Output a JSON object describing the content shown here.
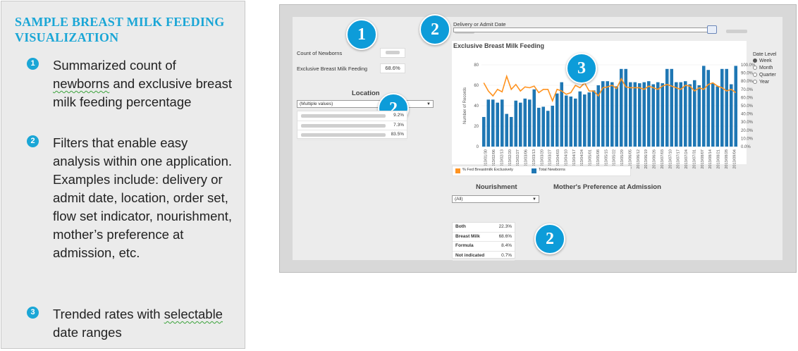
{
  "panel": {
    "title": "SAMPLE BREAST MILK FEEDING VISUALIZATION",
    "bullets": [
      {
        "num": "1",
        "text_pre": "Summarized count of ",
        "text_ul": "newborns",
        "text_post": " and exclusive breast milk feeding percentage"
      },
      {
        "num": "2",
        "text_pre": "Filters that enable easy analysis within one application. Examples include: delivery or admit date, location, order set, flow set indicator, nourishment, mother’s preference at admission, etc.",
        "text_ul": "",
        "text_post": ""
      },
      {
        "num": "3",
        "text_pre": "Trended rates with ",
        "text_ul": "selectable",
        "text_post": " date ranges"
      }
    ],
    "accent": "#1aa6d6"
  },
  "dashboard": {
    "badges": {
      "one": "1",
      "two": "2",
      "three": "3"
    },
    "date_filter_label": "Delivery or Admit Date",
    "count_label": "Count of Newborns",
    "ebmf_label": "Exclusive Breast Milk Feeding",
    "ebmf_value": "68.6%",
    "location": {
      "header": "Location",
      "dropdown": "(Multiple values)",
      "values": [
        "9.2%",
        "7.3%",
        "83.5%"
      ]
    },
    "nourishment": {
      "header": "Nourishment",
      "dropdown": "(All)"
    },
    "mother_pref": {
      "header": "Mother's Preference at Admission"
    },
    "pref_table": [
      {
        "label": "Both",
        "value": "22.3%"
      },
      {
        "label": "Breast Milk",
        "value": "68.6%"
      },
      {
        "label": "Formula",
        "value": "8.4%"
      },
      {
        "label": "Not indicated",
        "value": "0.7%"
      }
    ],
    "date_level": {
      "title": "Date Level",
      "options": [
        "Week",
        "Month",
        "Quarter",
        "Year"
      ],
      "selected": "Week"
    },
    "colors": {
      "bar": "#1f77b4",
      "line": "#ff9320"
    }
  },
  "chart_data": {
    "type": "bar",
    "title": "Exclusive Breast Milk Feeding",
    "ylabel": "Number of Records",
    "ylim": [
      0,
      80
    ],
    "y2lim": [
      0,
      100
    ],
    "y_ticks": [
      "80",
      "60",
      "40",
      "20",
      "0"
    ],
    "y2_ticks": [
      "100.0%",
      "90.0%",
      "80.0%",
      "70.0%",
      "60.0%",
      "50.0%",
      "40.0%",
      "30.0%",
      "20.0%",
      "10.0%",
      "0.0%"
    ],
    "categories": [
      "2013/01/30",
      "2013/02/06",
      "2013/02/13",
      "2013/02/20",
      "2013/02/27",
      "2013/03/06",
      "2013/03/13",
      "2013/03/20",
      "2013/03/27",
      "2013/04/03",
      "2013/04/10",
      "2013/04/17",
      "2013/04/24",
      "2013/05/01",
      "2013/05/08",
      "2013/05/15",
      "2013/05/22",
      "2013/05/29",
      "2013/06/05",
      "2013/06/12",
      "2013/06/19",
      "2013/06/26",
      "2013/07/03",
      "2013/07/10",
      "2013/07/17",
      "2013/07/24",
      "2013/07/31",
      "2013/08/07",
      "2013/08/14",
      "2013/08/21",
      "2013/08/28",
      "2013/09/04",
      "2013/09/11",
      "2013/09/18",
      "2013/09/25",
      "2013/10/02",
      "2013/10/09",
      "2013/10/16",
      "2013/10/23",
      "2013/10/30",
      "2013/11/06",
      "2013/11/13",
      "2013/11/20",
      "2013/11/27",
      "2013/12/04",
      "2013/12/11",
      "2013/12/18",
      "2013/12/25",
      "2014/01/01",
      "2014/01/08",
      "2014/01/15",
      "2014/01/22",
      "2014/01/29",
      "2014/02/05",
      "2014/02/12",
      "2014/02/19"
    ],
    "x_tick_labels": [
      "2013/01/30",
      "2013/02/06",
      "2013/02/13",
      "2013/02/20",
      "2013/02/27",
      "2013/03/06",
      "2013/03/13",
      "2013/03/20",
      "2013/03/27",
      "2013/04/03",
      "2013/04/10",
      "2013/04/17",
      "2013/04/24",
      "2013/05/01",
      "2013/05/08",
      "2013/05/15",
      "2013/05/22",
      "2013/05/29",
      "2013/06/05",
      "2013/06/12",
      "2013/06/19",
      "2013/06/26",
      "2013/07/03",
      "2013/07/10",
      "2013/07/17",
      "2013/07/24",
      "2013/07/31",
      "2013/08/07",
      "2013/08/14",
      "2013/08/21",
      "2013/08/28",
      "2013/09/04"
    ],
    "series": [
      {
        "name": "Total Newborns",
        "type": "bar",
        "axis": "left",
        "values": [
          29,
          46,
          46,
          43,
          46,
          32,
          29,
          45,
          43,
          47,
          46,
          56,
          38,
          39,
          35,
          40,
          52,
          63,
          50,
          49,
          47,
          54,
          51,
          53,
          55,
          60,
          64,
          64,
          63,
          59,
          76,
          76,
          63,
          63,
          62,
          63,
          64,
          61,
          63,
          62,
          76,
          76,
          63,
          63,
          64,
          61,
          65,
          60,
          79,
          75,
          62,
          59,
          76,
          76,
          61,
          79
        ]
      },
      {
        "name": "% Fed Breastmilk Exclusively",
        "type": "line",
        "axis": "right",
        "values": [
          78,
          68,
          62,
          70,
          67,
          86,
          70,
          76,
          68,
          73,
          72,
          74,
          66,
          70,
          70,
          56,
          70,
          68,
          64,
          66,
          75,
          72,
          78,
          68,
          68,
          62,
          72,
          73,
          75,
          71,
          83,
          73,
          72,
          72,
          72,
          70,
          74,
          72,
          70,
          74,
          76,
          74,
          72,
          70,
          75,
          74,
          68,
          72,
          70,
          76,
          78,
          74,
          72,
          68,
          70,
          66
        ]
      }
    ],
    "legend": "bottom"
  }
}
